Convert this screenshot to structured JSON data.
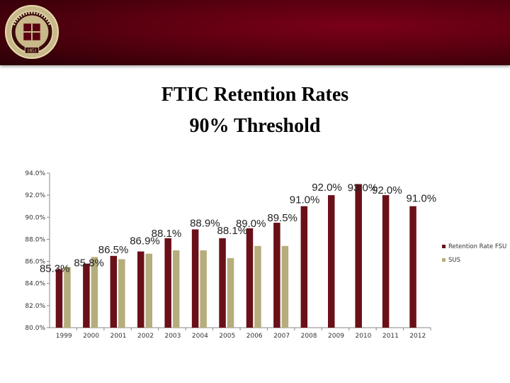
{
  "slide": {
    "title_line1": "FTIC Retention Rates",
    "title_line2": "90% Threshold",
    "seal": {
      "year": "1851"
    }
  },
  "colors": {
    "header": "#5a0010",
    "fsu_bar": "#6a1018",
    "sus_bar": "#b5ad7c"
  },
  "chart_data": {
    "type": "bar",
    "categories": [
      "1999",
      "2000",
      "2001",
      "2002",
      "2003",
      "2004",
      "2005",
      "2006",
      "2007",
      "2008",
      "2009",
      "2010",
      "2011",
      "2012"
    ],
    "series": [
      {
        "name": "Retention Rate FSU",
        "color": "#6a1018",
        "values": [
          85.3,
          85.8,
          86.5,
          86.9,
          88.1,
          88.9,
          88.1,
          89.0,
          89.5,
          91.0,
          92.0,
          93.0,
          92.0,
          91.0
        ],
        "labels": [
          "85.3%",
          "85.8%",
          "86.5%",
          "86.9%",
          "88.1%",
          "88.9%",
          "88.1%",
          "89.0%",
          "89.5%",
          "91.0%",
          "92.0%",
          "93.0%",
          "92.0%",
          "91.0%"
        ]
      },
      {
        "name": "SUS",
        "color": "#b5ad7c",
        "values": [
          85.5,
          86.4,
          86.2,
          86.7,
          87.0,
          87.0,
          86.3,
          87.4,
          87.4,
          null,
          null,
          null,
          null,
          null
        ]
      }
    ],
    "ylim": [
      80,
      94
    ],
    "yticks": [
      "80.0%",
      "82.0%",
      "84.0%",
      "86.0%",
      "88.0%",
      "90.0%",
      "92.0%",
      "94.0%"
    ],
    "legend_position": "right",
    "grid": false
  }
}
